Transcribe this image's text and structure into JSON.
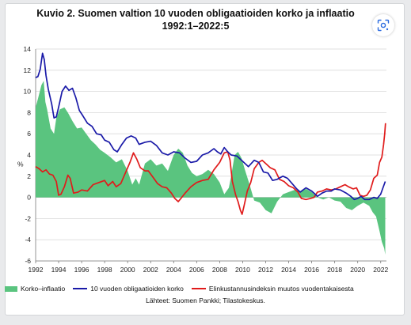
{
  "title_line1": "Kuvio 2. Suomen valtion 10 vuoden obligaatioiden korko ja inflaatio",
  "title_line2": "1992:1–2022:5",
  "lens_icon": "google-lens-icon",
  "source": "Lähteet: Suomen Pankki; Tilastokeskus.",
  "colors": {
    "area": "#5ac47f",
    "bond": "#1a1aa8",
    "cpi": "#e01b1b",
    "grid": "#d9d9d9",
    "axis": "#7a7a7a"
  },
  "chart_data": {
    "type": "line",
    "xlim": [
      1992,
      2022.5
    ],
    "ylim": [
      -6,
      14
    ],
    "ylabel": "%",
    "xticks": [
      "1992",
      "1994",
      "1996",
      "1998",
      "2000",
      "2002",
      "2004",
      "2006",
      "2008",
      "2010",
      "2012",
      "2014",
      "2016",
      "2018",
      "2020",
      "2022"
    ],
    "yticks": [
      "14",
      "12",
      "10",
      "8",
      "6",
      "4",
      "2",
      "0",
      "-2",
      "-4",
      "-6"
    ],
    "grid": "horizontal",
    "legend_position": "bottom",
    "series": [
      {
        "name": "Korko–inflaatio",
        "kind": "area",
        "points": [
          [
            1992.0,
            8.5
          ],
          [
            1992.2,
            9.3
          ],
          [
            1992.5,
            10.6
          ],
          [
            1992.7,
            11.0
          ],
          [
            1992.85,
            9.0
          ],
          [
            1993.0,
            8.3
          ],
          [
            1993.3,
            6.5
          ],
          [
            1993.6,
            6.0
          ],
          [
            1993.8,
            7.5
          ],
          [
            1994.1,
            8.3
          ],
          [
            1994.5,
            8.5
          ],
          [
            1994.8,
            8.0
          ],
          [
            1995.2,
            7.2
          ],
          [
            1995.6,
            6.5
          ],
          [
            1996.0,
            6.6
          ],
          [
            1996.4,
            6.0
          ],
          [
            1996.8,
            5.4
          ],
          [
            1997.2,
            5.0
          ],
          [
            1997.6,
            4.5
          ],
          [
            1998.0,
            4.2
          ],
          [
            1998.5,
            3.8
          ],
          [
            1999.0,
            3.3
          ],
          [
            1999.5,
            3.6
          ],
          [
            2000.0,
            2.5
          ],
          [
            2000.4,
            1.2
          ],
          [
            2000.7,
            1.8
          ],
          [
            2001.0,
            1.2
          ],
          [
            2001.5,
            3.2
          ],
          [
            2002.0,
            3.6
          ],
          [
            2002.5,
            3.0
          ],
          [
            2003.0,
            3.2
          ],
          [
            2003.5,
            2.5
          ],
          [
            2004.0,
            4.0
          ],
          [
            2004.4,
            4.6
          ],
          [
            2004.8,
            4.2
          ],
          [
            2005.2,
            3.0
          ],
          [
            2005.6,
            2.3
          ],
          [
            2006.0,
            2.0
          ],
          [
            2006.5,
            2.2
          ],
          [
            2007.0,
            2.6
          ],
          [
            2007.5,
            2.2
          ],
          [
            2008.0,
            1.4
          ],
          [
            2008.4,
            0.3
          ],
          [
            2008.8,
            0.9
          ],
          [
            2009.0,
            2.0
          ],
          [
            2009.3,
            4.0
          ],
          [
            2009.6,
            4.3
          ],
          [
            2009.9,
            3.7
          ],
          [
            2010.2,
            2.6
          ],
          [
            2010.6,
            1.2
          ],
          [
            2011.0,
            -0.3
          ],
          [
            2011.5,
            -0.5
          ],
          [
            2012.0,
            -1.2
          ],
          [
            2012.5,
            -1.5
          ],
          [
            2013.0,
            -0.4
          ],
          [
            2013.5,
            0.3
          ],
          [
            2014.0,
            0.5
          ],
          [
            2014.5,
            0.7
          ],
          [
            2015.0,
            0.6
          ],
          [
            2015.5,
            0.8
          ],
          [
            2016.0,
            0.5
          ],
          [
            2016.5,
            0.0
          ],
          [
            2017.0,
            -0.2
          ],
          [
            2017.5,
            0.0
          ],
          [
            2018.0,
            -0.3
          ],
          [
            2018.5,
            -0.4
          ],
          [
            2019.0,
            -1.0
          ],
          [
            2019.5,
            -1.2
          ],
          [
            2020.0,
            -0.8
          ],
          [
            2020.5,
            -0.5
          ],
          [
            2021.0,
            -0.8
          ],
          [
            2021.3,
            -1.4
          ],
          [
            2021.6,
            -1.8
          ],
          [
            2021.9,
            -3.2
          ],
          [
            2022.1,
            -4.2
          ],
          [
            2022.3,
            -4.8
          ],
          [
            2022.4,
            -5.4
          ]
        ]
      },
      {
        "name": "10 vuoden obligaatioiden korko",
        "kind": "line",
        "points": [
          [
            1992.0,
            11.3
          ],
          [
            1992.2,
            11.4
          ],
          [
            1992.4,
            12.1
          ],
          [
            1992.6,
            13.6
          ],
          [
            1992.75,
            13.0
          ],
          [
            1992.9,
            11.5
          ],
          [
            1993.1,
            10.2
          ],
          [
            1993.4,
            8.8
          ],
          [
            1993.6,
            7.5
          ],
          [
            1993.8,
            7.6
          ],
          [
            1994.0,
            8.5
          ],
          [
            1994.3,
            10.0
          ],
          [
            1994.6,
            10.5
          ],
          [
            1994.9,
            10.1
          ],
          [
            1995.2,
            10.3
          ],
          [
            1995.5,
            9.4
          ],
          [
            1995.8,
            8.2
          ],
          [
            1996.1,
            7.7
          ],
          [
            1996.5,
            7.0
          ],
          [
            1996.9,
            6.7
          ],
          [
            1997.3,
            6.0
          ],
          [
            1997.7,
            5.9
          ],
          [
            1998.0,
            5.4
          ],
          [
            1998.4,
            5.2
          ],
          [
            1998.8,
            4.5
          ],
          [
            1999.1,
            4.3
          ],
          [
            1999.5,
            5.0
          ],
          [
            1999.9,
            5.6
          ],
          [
            2000.3,
            5.8
          ],
          [
            2000.7,
            5.6
          ],
          [
            2001.0,
            5.0
          ],
          [
            2001.5,
            5.2
          ],
          [
            2002.0,
            5.3
          ],
          [
            2002.5,
            4.9
          ],
          [
            2003.0,
            4.2
          ],
          [
            2003.5,
            4.0
          ],
          [
            2004.0,
            4.3
          ],
          [
            2004.5,
            4.2
          ],
          [
            2005.0,
            3.7
          ],
          [
            2005.5,
            3.3
          ],
          [
            2006.0,
            3.4
          ],
          [
            2006.5,
            4.0
          ],
          [
            2007.0,
            4.2
          ],
          [
            2007.5,
            4.6
          ],
          [
            2007.8,
            4.3
          ],
          [
            2008.1,
            4.1
          ],
          [
            2008.4,
            4.7
          ],
          [
            2008.7,
            4.3
          ],
          [
            2009.0,
            4.0
          ],
          [
            2009.5,
            3.9
          ],
          [
            2010.0,
            3.4
          ],
          [
            2010.5,
            2.9
          ],
          [
            2011.0,
            3.5
          ],
          [
            2011.4,
            3.3
          ],
          [
            2011.8,
            2.4
          ],
          [
            2012.2,
            2.3
          ],
          [
            2012.6,
            1.6
          ],
          [
            2013.0,
            1.7
          ],
          [
            2013.5,
            2.0
          ],
          [
            2013.9,
            1.8
          ],
          [
            2014.3,
            1.3
          ],
          [
            2014.7,
            0.8
          ],
          [
            2015.0,
            0.5
          ],
          [
            2015.5,
            0.9
          ],
          [
            2016.0,
            0.6
          ],
          [
            2016.5,
            0.1
          ],
          [
            2016.9,
            0.4
          ],
          [
            2017.3,
            0.6
          ],
          [
            2017.7,
            0.6
          ],
          [
            2018.0,
            0.8
          ],
          [
            2018.5,
            0.7
          ],
          [
            2019.0,
            0.4
          ],
          [
            2019.4,
            0.1
          ],
          [
            2019.7,
            -0.2
          ],
          [
            2020.0,
            -0.1
          ],
          [
            2020.3,
            0.1
          ],
          [
            2020.6,
            -0.2
          ],
          [
            2021.0,
            -0.2
          ],
          [
            2021.4,
            0.0
          ],
          [
            2021.7,
            -0.1
          ],
          [
            2022.0,
            0.3
          ],
          [
            2022.2,
            0.9
          ],
          [
            2022.4,
            1.5
          ]
        ]
      },
      {
        "name": "Elinkustannusindeksin muutos vuodentakaisesta",
        "kind": "line",
        "points": [
          [
            1992.0,
            2.9
          ],
          [
            1992.3,
            2.7
          ],
          [
            1992.6,
            2.4
          ],
          [
            1992.9,
            2.6
          ],
          [
            1993.2,
            2.2
          ],
          [
            1993.5,
            2.1
          ],
          [
            1993.8,
            1.5
          ],
          [
            1994.0,
            0.2
          ],
          [
            1994.2,
            0.3
          ],
          [
            1994.5,
            1.0
          ],
          [
            1994.8,
            2.1
          ],
          [
            1995.0,
            1.8
          ],
          [
            1995.3,
            0.4
          ],
          [
            1995.7,
            0.5
          ],
          [
            1996.0,
            0.7
          ],
          [
            1996.5,
            0.6
          ],
          [
            1997.0,
            1.2
          ],
          [
            1997.5,
            1.4
          ],
          [
            1998.0,
            1.6
          ],
          [
            1998.3,
            1.1
          ],
          [
            1998.7,
            1.5
          ],
          [
            1999.0,
            1.0
          ],
          [
            1999.4,
            1.3
          ],
          [
            1999.8,
            2.3
          ],
          [
            2000.2,
            3.3
          ],
          [
            2000.5,
            4.2
          ],
          [
            2000.8,
            3.6
          ],
          [
            2001.1,
            2.8
          ],
          [
            2001.5,
            2.5
          ],
          [
            2001.8,
            2.5
          ],
          [
            2002.2,
            1.9
          ],
          [
            2002.6,
            1.3
          ],
          [
            2003.0,
            1.0
          ],
          [
            2003.4,
            0.9
          ],
          [
            2003.8,
            0.4
          ],
          [
            2004.1,
            -0.1
          ],
          [
            2004.4,
            -0.4
          ],
          [
            2004.7,
            0.0
          ],
          [
            2005.0,
            0.4
          ],
          [
            2005.5,
            1.0
          ],
          [
            2006.0,
            1.4
          ],
          [
            2006.5,
            1.6
          ],
          [
            2007.0,
            1.7
          ],
          [
            2007.5,
            2.6
          ],
          [
            2008.0,
            3.3
          ],
          [
            2008.4,
            4.2
          ],
          [
            2008.7,
            4.3
          ],
          [
            2008.9,
            3.5
          ],
          [
            2009.1,
            1.5
          ],
          [
            2009.4,
            0.2
          ],
          [
            2009.6,
            -0.4
          ],
          [
            2009.8,
            -1.2
          ],
          [
            2009.95,
            -1.6
          ],
          [
            2010.1,
            -0.9
          ],
          [
            2010.4,
            0.6
          ],
          [
            2010.7,
            1.4
          ],
          [
            2011.0,
            2.7
          ],
          [
            2011.4,
            3.3
          ],
          [
            2011.7,
            3.5
          ],
          [
            2012.0,
            3.2
          ],
          [
            2012.4,
            2.8
          ],
          [
            2012.8,
            2.6
          ],
          [
            2013.2,
            1.7
          ],
          [
            2013.6,
            1.5
          ],
          [
            2014.0,
            1.1
          ],
          [
            2014.4,
            0.9
          ],
          [
            2014.8,
            0.5
          ],
          [
            2015.1,
            -0.1
          ],
          [
            2015.5,
            -0.2
          ],
          [
            2015.9,
            -0.1
          ],
          [
            2016.2,
            0.0
          ],
          [
            2016.5,
            0.5
          ],
          [
            2016.9,
            0.6
          ],
          [
            2017.3,
            0.8
          ],
          [
            2017.7,
            0.7
          ],
          [
            2018.1,
            0.8
          ],
          [
            2018.5,
            1.0
          ],
          [
            2018.9,
            1.2
          ],
          [
            2019.2,
            1.0
          ],
          [
            2019.6,
            0.8
          ],
          [
            2019.9,
            0.9
          ],
          [
            2020.2,
            0.2
          ],
          [
            2020.5,
            0.1
          ],
          [
            2020.8,
            0.2
          ],
          [
            2021.1,
            0.7
          ],
          [
            2021.4,
            1.8
          ],
          [
            2021.7,
            2.1
          ],
          [
            2021.9,
            3.3
          ],
          [
            2022.1,
            3.8
          ],
          [
            2022.25,
            5.0
          ],
          [
            2022.35,
            6.0
          ],
          [
            2022.42,
            7.0
          ]
        ]
      }
    ]
  }
}
